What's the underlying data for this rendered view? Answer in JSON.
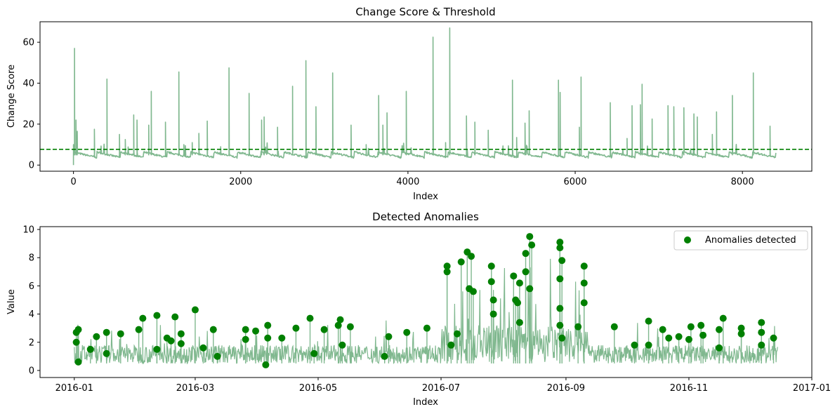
{
  "colors": {
    "line": "#80b88f",
    "threshold": "#007f00",
    "anomaly": "#008000",
    "axes": "#000000"
  },
  "chart_data": [
    {
      "type": "line",
      "title": "Change Score & Threshold",
      "xlabel": "Index",
      "ylabel": "Change Score",
      "xlim": [
        -400,
        8830
      ],
      "ylim": [
        -3,
        70
      ],
      "xticks": [
        0,
        2000,
        4000,
        6000,
        8000
      ],
      "xtick_labels": [
        "0",
        "2000",
        "4000",
        "6000",
        "8000"
      ],
      "yticks": [
        0,
        20,
        40,
        60
      ],
      "ytick_labels": [
        "0",
        "20",
        "40",
        "60"
      ],
      "threshold": 7.7,
      "n_points": 8400,
      "baseline": {
        "start": 6,
        "end": 3.5
      },
      "spikes": [
        [
          0,
          10
        ],
        [
          12,
          57
        ],
        [
          30,
          22
        ],
        [
          45,
          16.5
        ],
        [
          250,
          17.5
        ],
        [
          400,
          42
        ],
        [
          550,
          15
        ],
        [
          620,
          12.5
        ],
        [
          720,
          24.5
        ],
        [
          760,
          22
        ],
        [
          900,
          19.5
        ],
        [
          930,
          36
        ],
        [
          1100,
          21
        ],
        [
          1260,
          45.5
        ],
        [
          1320,
          10
        ],
        [
          1420,
          11
        ],
        [
          1500,
          15.5
        ],
        [
          1600,
          21.5
        ],
        [
          1760,
          9
        ],
        [
          1860,
          47.5
        ],
        [
          2100,
          35
        ],
        [
          2250,
          22
        ],
        [
          2280,
          23.5
        ],
        [
          2440,
          18.5
        ],
        [
          2620,
          38.5
        ],
        [
          2780,
          51
        ],
        [
          2900,
          28.5
        ],
        [
          3100,
          45
        ],
        [
          3320,
          19.5
        ],
        [
          3500,
          10
        ],
        [
          3650,
          34
        ],
        [
          3700,
          19.5
        ],
        [
          3750,
          25.5
        ],
        [
          3980,
          36
        ],
        [
          4300,
          62.5
        ],
        [
          4450,
          11
        ],
        [
          4500,
          67
        ],
        [
          4700,
          24
        ],
        [
          4800,
          21
        ],
        [
          4960,
          17
        ],
        [
          5250,
          41.5
        ],
        [
          5300,
          13.5
        ],
        [
          5400,
          20.5
        ],
        [
          5450,
          26.5
        ],
        [
          5800,
          41.5
        ],
        [
          5820,
          35.5
        ],
        [
          6050,
          18.5
        ],
        [
          6070,
          43
        ],
        [
          6420,
          30.5
        ],
        [
          6620,
          13
        ],
        [
          6680,
          29
        ],
        [
          6780,
          29.5
        ],
        [
          6800,
          39.5
        ],
        [
          6920,
          22.5
        ],
        [
          7110,
          29
        ],
        [
          7180,
          28.5
        ],
        [
          7300,
          28
        ],
        [
          7420,
          25
        ],
        [
          7460,
          23.5
        ],
        [
          7640,
          15
        ],
        [
          7690,
          26
        ],
        [
          7880,
          34
        ],
        [
          8130,
          45
        ],
        [
          8330,
          19
        ]
      ]
    },
    {
      "type": "line",
      "title": "Detected Anomalies",
      "xlabel": "Index",
      "ylabel": "Value",
      "x_start": "2016-01-01",
      "x_end": "2016-12-15",
      "xlim": [
        "2015-12-15",
        "2017-01-01"
      ],
      "ylim": [
        -0.5,
        10.2
      ],
      "xticks": [
        "2016-01-01",
        "2016-03-01",
        "2016-05-01",
        "2016-07-01",
        "2016-09-01",
        "2016-11-01",
        "2017-01-01"
      ],
      "xtick_labels": [
        "2016-01",
        "2016-03",
        "2016-05",
        "2016-07",
        "2016-09",
        "2016-11",
        "2017-01"
      ],
      "yticks": [
        0,
        2,
        4,
        6,
        8,
        10
      ],
      "ytick_labels": [
        "0",
        "2",
        "4",
        "6",
        "8",
        "10"
      ],
      "legend": {
        "label": "Anomalies detected",
        "position": "upper right"
      },
      "anomalies": [
        [
          "2016-01-02",
          2.7
        ],
        [
          "2016-01-03",
          2.9
        ],
        [
          "2016-01-12",
          2.4
        ],
        [
          "2016-01-17",
          2.7
        ],
        [
          "2016-01-24",
          2.6
        ],
        [
          "2016-02-04",
          3.7
        ],
        [
          "2016-02-11",
          3.9
        ],
        [
          "2016-02-16",
          2.3
        ],
        [
          "2016-02-20",
          3.8
        ],
        [
          "2016-02-23",
          2.6
        ],
        [
          "2016-03-01",
          4.3
        ],
        [
          "2016-03-10",
          2.9
        ],
        [
          "2016-03-26",
          2.9
        ],
        [
          "2016-03-31",
          2.8
        ],
        [
          "2016-04-06",
          3.2
        ],
        [
          "2016-04-13",
          2.3
        ],
        [
          "2016-04-20",
          3.0
        ],
        [
          "2016-04-27",
          3.7
        ],
        [
          "2016-05-04",
          2.9
        ],
        [
          "2016-05-12",
          3.6
        ],
        [
          "2016-05-17",
          3.1
        ],
        [
          "2016-06-05",
          2.4
        ],
        [
          "2016-06-14",
          2.7
        ],
        [
          "2016-06-24",
          3.0
        ],
        [
          "2016-07-04",
          7.4
        ],
        [
          "2016-07-11",
          7.7
        ],
        [
          "2016-07-14",
          8.4
        ],
        [
          "2016-07-16",
          8.1
        ],
        [
          "2016-07-26",
          7.4
        ],
        [
          "2016-08-06",
          6.7
        ],
        [
          "2016-08-09",
          6.2
        ],
        [
          "2016-08-12",
          8.3
        ],
        [
          "2016-08-14",
          9.5
        ],
        [
          "2016-08-15",
          8.9
        ],
        [
          "2016-08-29",
          9.1
        ],
        [
          "2016-08-29",
          8.7
        ],
        [
          "2016-08-30",
          7.8
        ],
        [
          "2016-09-10",
          7.4
        ],
        [
          "2016-09-25",
          3.1
        ],
        [
          "2016-10-05",
          1.8
        ],
        [
          "2016-10-12",
          3.5
        ],
        [
          "2016-10-19",
          2.9
        ],
        [
          "2016-10-27",
          2.4
        ],
        [
          "2016-11-02",
          3.1
        ],
        [
          "2016-11-07",
          3.2
        ],
        [
          "2016-11-16",
          2.9
        ],
        [
          "2016-11-18",
          3.7
        ],
        [
          "2016-11-27",
          3.0
        ],
        [
          "2016-12-07",
          3.4
        ],
        [
          "2016-12-13",
          2.3
        ],
        [
          "2016-01-02",
          2.0
        ],
        [
          "2016-01-03",
          0.6
        ],
        [
          "2016-01-09",
          1.5
        ],
        [
          "2016-01-17",
          1.2
        ],
        [
          "2016-02-02",
          2.9
        ],
        [
          "2016-02-11",
          1.5
        ],
        [
          "2016-02-18",
          2.1
        ],
        [
          "2016-02-23",
          1.9
        ],
        [
          "2016-03-05",
          1.6
        ],
        [
          "2016-03-12",
          1.0
        ],
        [
          "2016-03-26",
          2.2
        ],
        [
          "2016-04-05",
          0.4
        ],
        [
          "2016-04-06",
          2.3
        ],
        [
          "2016-04-29",
          1.2
        ],
        [
          "2016-05-11",
          3.2
        ],
        [
          "2016-05-13",
          1.8
        ],
        [
          "2016-06-03",
          1.0
        ],
        [
          "2016-07-04",
          7.0
        ],
        [
          "2016-07-06",
          1.8
        ],
        [
          "2016-07-09",
          2.6
        ],
        [
          "2016-07-15",
          5.8
        ],
        [
          "2016-07-17",
          5.6
        ],
        [
          "2016-07-26",
          6.3
        ],
        [
          "2016-07-27",
          5.0
        ],
        [
          "2016-07-27",
          4.0
        ],
        [
          "2016-08-07",
          5.0
        ],
        [
          "2016-08-08",
          4.8
        ],
        [
          "2016-08-09",
          3.4
        ],
        [
          "2016-08-12",
          7.0
        ],
        [
          "2016-08-14",
          5.8
        ],
        [
          "2016-08-29",
          6.5
        ],
        [
          "2016-08-29",
          4.4
        ],
        [
          "2016-08-29",
          3.2
        ],
        [
          "2016-08-30",
          2.3
        ],
        [
          "2016-09-07",
          3.1
        ],
        [
          "2016-09-10",
          6.2
        ],
        [
          "2016-09-10",
          4.8
        ],
        [
          "2016-10-12",
          1.8
        ],
        [
          "2016-10-22",
          2.3
        ],
        [
          "2016-11-01",
          2.2
        ],
        [
          "2016-11-08",
          2.5
        ],
        [
          "2016-11-16",
          1.6
        ],
        [
          "2016-11-27",
          2.6
        ],
        [
          "2016-12-07",
          2.7
        ],
        [
          "2016-12-07",
          1.8
        ]
      ]
    }
  ]
}
